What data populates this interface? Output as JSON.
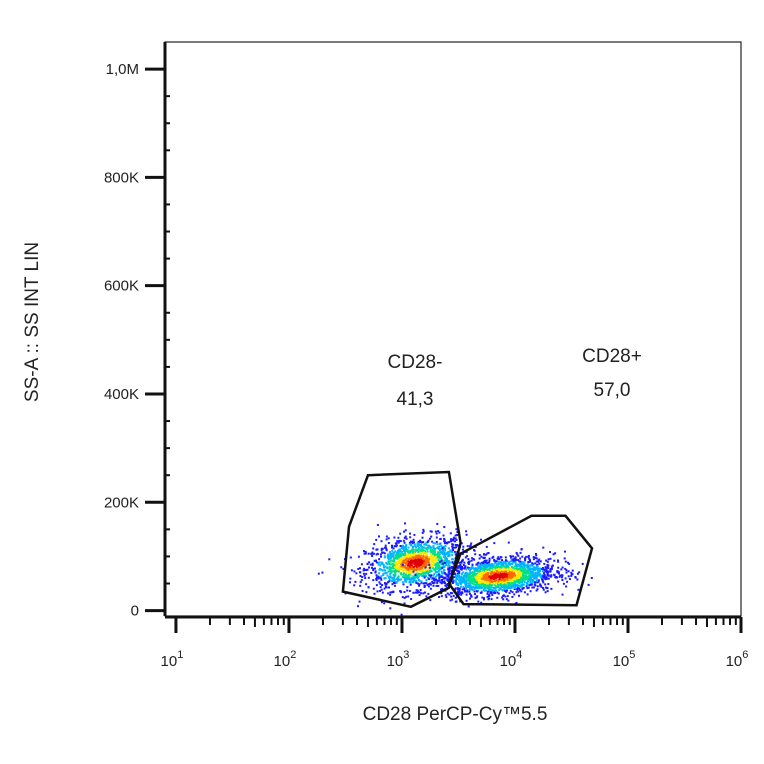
{
  "chart_data": {
    "type": "scatter",
    "title": "",
    "xlabel": "CD28 PerCP-Cy™5.5",
    "ylabel": "SS-A :: SS INT LIN",
    "x_scale": "log",
    "xlim": [
      8,
      1000000
    ],
    "ylim": [
      -10000,
      1050000
    ],
    "grid": false,
    "x_ticks": [
      {
        "base": "10",
        "exp": "1",
        "value": 10
      },
      {
        "base": "10",
        "exp": "2",
        "value": 100
      },
      {
        "base": "10",
        "exp": "3",
        "value": 1000
      },
      {
        "base": "10",
        "exp": "4",
        "value": 10000
      },
      {
        "base": "10",
        "exp": "5",
        "value": 100000
      },
      {
        "base": "10",
        "exp": "6",
        "value": 1000000
      }
    ],
    "y_ticks": [
      {
        "label": "0",
        "value": 0
      },
      {
        "label": "200K",
        "value": 200000
      },
      {
        "label": "400K",
        "value": 400000
      },
      {
        "label": "600K",
        "value": 600000
      },
      {
        "label": "800K",
        "value": 800000
      },
      {
        "label": "1,0M",
        "value": 1000000
      }
    ],
    "populations": [
      {
        "center_x": 1300,
        "center_y": 90000,
        "spread_log_x": 0.22,
        "spread_y": 23000,
        "count": 1400
      },
      {
        "center_x": 7000,
        "center_y": 65000,
        "spread_log_x": 0.25,
        "spread_y": 17000,
        "count": 1800
      }
    ],
    "density_colors": [
      "#1a1aff",
      "#00b4ff",
      "#00e08c",
      "#ffe800",
      "#ff6a00",
      "#e00000"
    ],
    "gates": [
      {
        "name": "CD28-",
        "percent": "41,3",
        "polygon": [
          [
            330,
            55000
          ],
          [
            1800,
            150000
          ],
          [
            800,
            8000
          ],
          [
            250,
            35000
          ],
          [
            300,
            155000
          ]
        ],
        "vertices": [
          [
            500,
            250000
          ],
          [
            2600,
            256000
          ],
          [
            3300,
            125000
          ],
          [
            2600,
            42000
          ],
          [
            1200,
            7000
          ],
          [
            300,
            35000
          ],
          [
            340,
            155000
          ]
        ]
      },
      {
        "name": "CD28+",
        "percent": "57,0",
        "vertices": [
          [
            3300,
            105000
          ],
          [
            14000,
            175000
          ],
          [
            28000,
            175000
          ],
          [
            48000,
            115000
          ],
          [
            35000,
            10000
          ],
          [
            3500,
            12000
          ],
          [
            2600,
            50000
          ]
        ]
      }
    ]
  }
}
